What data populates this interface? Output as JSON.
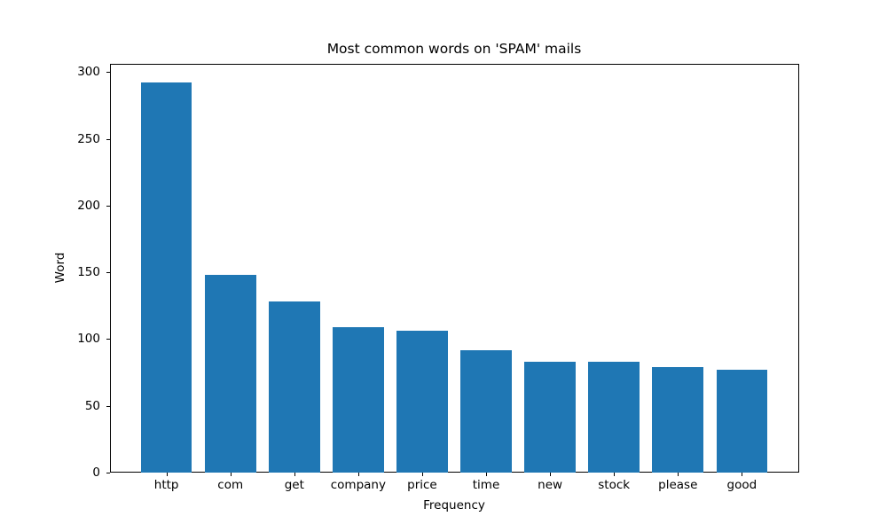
{
  "figure": {
    "title": "Most common words on 'SPAM' mails"
  },
  "chart_data": {
    "type": "bar",
    "title": "Most common words on 'SPAM' mails",
    "xlabel": "Frequency",
    "ylabel": "Word",
    "categories": [
      "http",
      "com",
      "get",
      "company",
      "price",
      "time",
      "new",
      "stock",
      "please",
      "good"
    ],
    "values": [
      292,
      148,
      128,
      109,
      106,
      92,
      83,
      83,
      79,
      77
    ],
    "yticks": [
      0,
      50,
      100,
      150,
      200,
      250,
      300
    ],
    "ylim": [
      0,
      306.6
    ],
    "bar_color": "#1f77b4",
    "spine_color": "#000000",
    "background_color": "#ffffff",
    "grid": false,
    "legend_position": "none"
  }
}
